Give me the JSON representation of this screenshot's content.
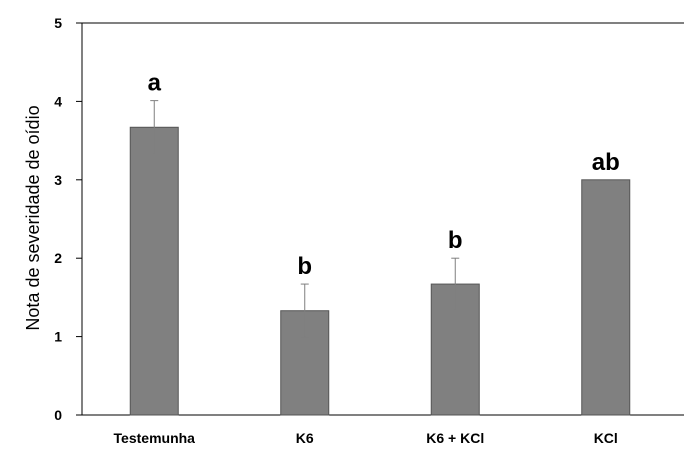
{
  "chart_data": {
    "type": "bar",
    "title": "",
    "xlabel": "",
    "ylabel": "Nota de severidade de oídio",
    "ylim": [
      0,
      5
    ],
    "yticks": [
      "0",
      "1",
      "2",
      "3",
      "4",
      "5"
    ],
    "categories": [
      "Testemunha",
      "K6",
      "K6 + KCl",
      "KCl"
    ],
    "values": [
      3.67,
      1.33,
      1.67,
      3.0
    ],
    "errors": [
      0.34,
      0.34,
      0.33,
      0.0
    ],
    "significance_labels": [
      "a",
      "b",
      "b",
      "ab"
    ],
    "grid": false,
    "colors": {
      "bar": "#808080",
      "bar_edge": "#555555",
      "error_bar": "#7f7f7f",
      "axis": "#000000"
    }
  }
}
